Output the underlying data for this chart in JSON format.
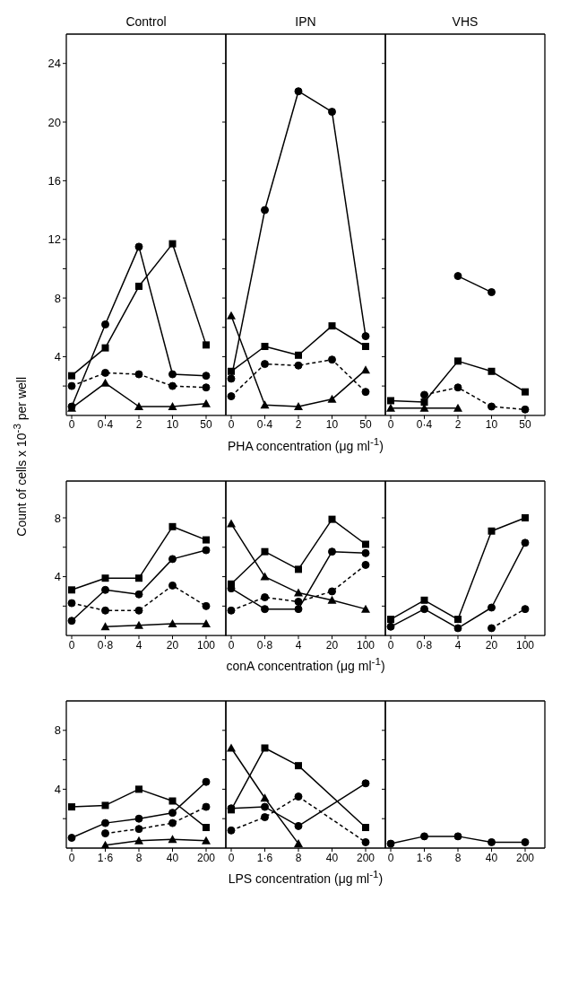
{
  "chart_data": [
    {
      "type": "line",
      "title": "Control",
      "categories": [
        "0",
        "0·4",
        "2",
        "10",
        "50"
      ],
      "ylim": [
        0,
        26
      ],
      "yticks": [
        {
          "value": 2,
          "label": null
        },
        4,
        {
          "value": 6,
          "label": null
        },
        8,
        {
          "value": 10,
          "label": null
        },
        12,
        16,
        20,
        24
      ],
      "series": [
        {
          "color": "#000000",
          "marker": "circle",
          "line_style": "solid",
          "values": [
            0.6,
            6.2,
            11.5,
            2.8,
            2.7
          ]
        },
        {
          "color": "#000000",
          "marker": "circle",
          "line_style": "dashed",
          "values": [
            2.0,
            2.9,
            2.8,
            2.0,
            1.9
          ]
        },
        {
          "color": "#000000",
          "marker": "square",
          "line_style": "solid",
          "values": [
            2.7,
            4.6,
            8.8,
            11.7,
            4.8
          ]
        },
        {
          "color": "#000000",
          "marker": "triangle",
          "line_style": "solid",
          "values": [
            0.5,
            2.2,
            0.6,
            0.6,
            0.8
          ]
        }
      ]
    },
    {
      "type": "line",
      "title": "IPN",
      "xlabel": "PHA concentration (μg ml$^{-1}$)",
      "tick_labels": "x",
      "categories": [
        "0",
        "0·4",
        "2",
        "10",
        "50"
      ],
      "ylim": [
        0,
        26
      ],
      "yticks": [
        {
          "value": 2,
          "label": null
        },
        4,
        {
          "value": 6,
          "label": null
        },
        8,
        {
          "value": 10,
          "label": null
        },
        12,
        16,
        20,
        24
      ],
      "series": [
        {
          "color": "#000000",
          "marker": "circle",
          "line_style": "solid",
          "values": [
            2.5,
            14.0,
            22.1,
            20.7,
            5.4
          ]
        },
        {
          "color": "#000000",
          "marker": "circle",
          "line_style": "dashed",
          "values": [
            1.3,
            3.5,
            3.4,
            3.8,
            1.6
          ]
        },
        {
          "color": "#000000",
          "marker": "square",
          "line_style": "solid",
          "values": [
            3.0,
            4.7,
            4.1,
            6.1,
            4.7
          ]
        },
        {
          "color": "#000000",
          "marker": "triangle",
          "line_style": "solid",
          "values": [
            6.8,
            0.7,
            0.6,
            1.1,
            3.1
          ]
        }
      ]
    },
    {
      "type": "line",
      "title": "VHS",
      "tick_labels": "x",
      "categories": [
        "0",
        "0·4",
        "2",
        "10",
        "50"
      ],
      "ylim": [
        0,
        26
      ],
      "yticks": [
        {
          "value": 2,
          "label": null
        },
        4,
        {
          "value": 6,
          "label": null
        },
        8,
        {
          "value": 10,
          "label": null
        },
        12,
        16,
        20,
        24
      ],
      "series": [
        {
          "color": "#000000",
          "marker": "circle",
          "line_style": "solid",
          "values": [
            null,
            null,
            9.5,
            8.4,
            null
          ]
        },
        {
          "color": "#000000",
          "marker": "circle",
          "line_style": "dashed",
          "values": [
            null,
            1.4,
            1.9,
            0.6,
            0.4
          ]
        },
        {
          "color": "#000000",
          "marker": "square",
          "line_style": "solid",
          "values": [
            1.0,
            0.9,
            3.7,
            3.0,
            1.6
          ]
        },
        {
          "color": "#000000",
          "marker": "triangle",
          "line_style": "solid",
          "values": [
            0.5,
            0.5,
            0.5,
            null,
            null
          ]
        }
      ]
    },
    {
      "type": "line",
      "ylabel": "Count of cells x 10$^{-3}$ per well",
      "categories": [
        "0",
        "0·8",
        "4",
        "20",
        "100"
      ],
      "ylim": [
        0,
        10.5
      ],
      "yticks": [
        {
          "value": 2,
          "label": null
        },
        4,
        {
          "value": 6,
          "label": null
        },
        8
      ],
      "series": [
        {
          "color": "#000000",
          "marker": "circle",
          "line_style": "solid",
          "values": [
            1.0,
            3.1,
            2.8,
            5.2,
            5.8
          ]
        },
        {
          "color": "#000000",
          "marker": "circle",
          "line_style": "dashed",
          "values": [
            2.2,
            1.7,
            1.7,
            3.4,
            2.0
          ]
        },
        {
          "color": "#000000",
          "marker": "square",
          "line_style": "solid",
          "values": [
            3.1,
            3.9,
            3.9,
            7.4,
            6.5
          ]
        },
        {
          "color": "#000000",
          "marker": "triangle",
          "line_style": "solid",
          "values": [
            null,
            0.6,
            0.7,
            0.8,
            0.8
          ]
        }
      ]
    },
    {
      "type": "line",
      "xlabel": "conA concentration (μg ml$^{-1}$)",
      "tick_labels": "x",
      "categories": [
        "0",
        "0·8",
        "4",
        "20",
        "100"
      ],
      "ylim": [
        0,
        10.5
      ],
      "yticks": [
        {
          "value": 2,
          "label": null
        },
        4,
        {
          "value": 6,
          "label": null
        },
        8
      ],
      "series": [
        {
          "color": "#000000",
          "marker": "circle",
          "line_style": "solid",
          "values": [
            3.2,
            1.8,
            1.8,
            5.7,
            5.6
          ]
        },
        {
          "color": "#000000",
          "marker": "circle",
          "line_style": "dashed",
          "values": [
            1.7,
            2.6,
            2.3,
            3.0,
            4.8
          ]
        },
        {
          "color": "#000000",
          "marker": "square",
          "line_style": "solid",
          "values": [
            3.5,
            5.7,
            4.5,
            7.9,
            6.2
          ]
        },
        {
          "color": "#000000",
          "marker": "triangle",
          "line_style": "solid",
          "values": [
            7.6,
            4.0,
            2.9,
            2.4,
            1.8
          ]
        }
      ]
    },
    {
      "type": "line",
      "tick_labels": "x",
      "categories": [
        "0",
        "0·8",
        "4",
        "20",
        "100"
      ],
      "ylim": [
        0,
        10.5
      ],
      "yticks": [
        {
          "value": 2,
          "label": null
        },
        4,
        {
          "value": 6,
          "label": null
        },
        8
      ],
      "series": [
        {
          "color": "#000000",
          "marker": "circle",
          "line_style": "solid",
          "values": [
            0.6,
            1.8,
            0.5,
            1.9,
            6.3
          ]
        },
        {
          "color": "#000000",
          "marker": "circle",
          "line_style": "dashed",
          "values": [
            null,
            null,
            null,
            0.5,
            1.8
          ]
        },
        {
          "color": "#000000",
          "marker": "square",
          "line_style": "solid",
          "values": [
            1.1,
            2.4,
            1.1,
            7.1,
            8.0
          ]
        }
      ]
    },
    {
      "type": "line",
      "categories": [
        "0",
        "1·6",
        "8",
        "40",
        "200"
      ],
      "ylim": [
        0,
        10
      ],
      "yticks": [
        {
          "value": 2,
          "label": null
        },
        4,
        {
          "value": 6,
          "label": null
        },
        8
      ],
      "series": [
        {
          "color": "#000000",
          "marker": "circle",
          "line_style": "solid",
          "values": [
            0.7,
            1.7,
            2.0,
            2.4,
            4.5
          ]
        },
        {
          "color": "#000000",
          "marker": "circle",
          "line_style": "dashed",
          "values": [
            null,
            1.0,
            1.3,
            1.7,
            2.8
          ]
        },
        {
          "color": "#000000",
          "marker": "square",
          "line_style": "solid",
          "values": [
            2.8,
            2.9,
            4.0,
            3.2,
            1.4
          ]
        },
        {
          "color": "#000000",
          "marker": "triangle",
          "line_style": "solid",
          "values": [
            null,
            0.2,
            0.5,
            0.6,
            0.5
          ]
        }
      ]
    },
    {
      "type": "line",
      "xlabel": "LPS concentration (μg ml$^{-1}$)",
      "tick_labels": "x",
      "categories": [
        "0",
        "1·6",
        "8",
        "40",
        "200"
      ],
      "ylim": [
        0,
        10
      ],
      "yticks": [
        {
          "value": 2,
          "label": null
        },
        4,
        {
          "value": 6,
          "label": null
        },
        8
      ],
      "series": [
        {
          "color": "#000000",
          "marker": "circle",
          "line_style": "solid",
          "values": [
            2.7,
            2.8,
            1.5,
            null,
            4.4
          ]
        },
        {
          "color": "#000000",
          "marker": "circle",
          "line_style": "dashed",
          "values": [
            1.2,
            2.1,
            3.5,
            null,
            0.4
          ]
        },
        {
          "color": "#000000",
          "marker": "square",
          "line_style": "solid",
          "values": [
            2.6,
            6.8,
            5.6,
            null,
            1.4
          ]
        },
        {
          "color": "#000000",
          "marker": "triangle",
          "line_style": "solid",
          "values": [
            6.8,
            3.4,
            0.3,
            null,
            null
          ]
        }
      ]
    },
    {
      "type": "line",
      "tick_labels": "x",
      "categories": [
        "0",
        "1·6",
        "8",
        "40",
        "200"
      ],
      "ylim": [
        0,
        10
      ],
      "yticks": [
        {
          "value": 2,
          "label": null
        },
        4,
        {
          "value": 6,
          "label": null
        },
        8
      ],
      "series": [
        {
          "color": "#000000",
          "marker": "circle",
          "line_style": "solid",
          "values": [
            0.3,
            0.8,
            0.8,
            0.4,
            0.4
          ]
        }
      ]
    }
  ]
}
